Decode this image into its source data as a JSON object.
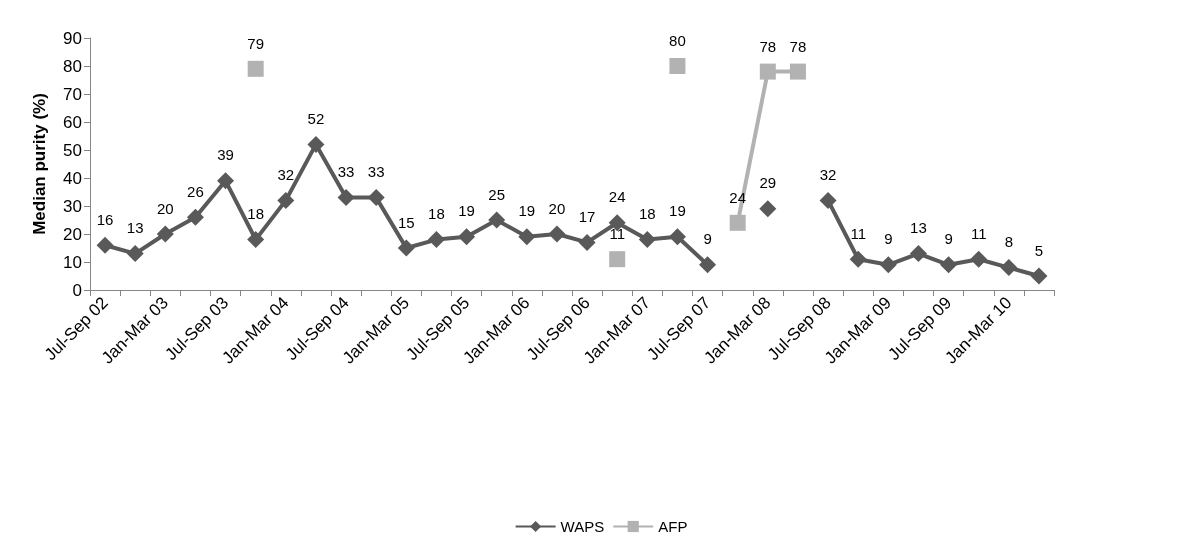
{
  "chart_data": {
    "type": "line",
    "ylabel": "Median purity (%)",
    "categories": [
      "Jul-Sep 02",
      null,
      "Jan-Mar 03",
      null,
      "Jul-Sep 03",
      null,
      "Jan-Mar 04",
      null,
      "Jul-Sep 04",
      null,
      "Jan-Mar 05",
      null,
      "Jul-Sep 05",
      null,
      "Jan-Mar 06",
      null,
      "Jul-Sep 06",
      null,
      "Jan-Mar 07",
      null,
      "Jul-Sep 07",
      null,
      "Jan-Mar 08",
      null,
      "Jul-Sep 08",
      null,
      "Jan-Mar 09",
      null,
      "Jul-Sep 09",
      null,
      "Jan-Mar 10",
      null
    ],
    "series": [
      {
        "name": "WAPS",
        "color": "#595959",
        "marker": "diamond",
        "values": [
          16,
          13,
          20,
          26,
          39,
          18,
          32,
          52,
          33,
          33,
          15,
          18,
          19,
          25,
          19,
          20,
          17,
          24,
          18,
          19,
          9,
          null,
          29,
          null,
          32,
          11,
          9,
          13,
          9,
          11,
          8,
          5
        ]
      },
      {
        "name": "AFP",
        "color": "#b2b2b2",
        "marker": "square",
        "values": [
          null,
          null,
          null,
          null,
          null,
          79,
          null,
          null,
          null,
          null,
          null,
          null,
          null,
          null,
          null,
          null,
          null,
          11,
          null,
          80,
          null,
          24,
          78,
          78,
          null,
          null,
          null,
          null,
          null,
          null,
          null,
          null
        ]
      }
    ],
    "ylim": [
      0,
      90
    ],
    "yticks": [
      0,
      10,
      20,
      30,
      40,
      50,
      60,
      70,
      80,
      90
    ],
    "data_labels": true,
    "grid": false,
    "legend": "bottom",
    "line_style": "solid"
  }
}
